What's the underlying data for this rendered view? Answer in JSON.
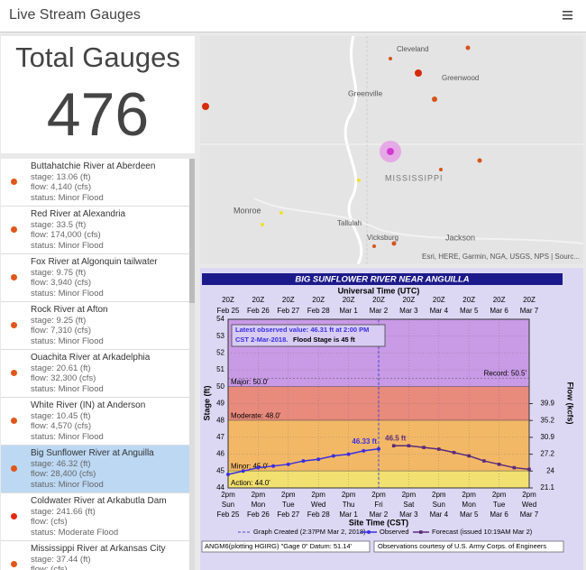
{
  "header": {
    "title": "Live Stream Gauges"
  },
  "summary": {
    "label": "Total Gauges",
    "value": 476
  },
  "gauges": [
    {
      "name": "Buttahatchie River at Aberdeen",
      "stage": "stage: 13.06 (ft)",
      "flow": "flow: 4,140 (cfs)",
      "status": "status: Minor Flood",
      "color": "#e0561b"
    },
    {
      "name": "Red River at Alexandria",
      "stage": "stage: 33.5 (ft)",
      "flow": "flow: 174,000 (cfs)",
      "status": "status: Minor Flood",
      "color": "#e0561b"
    },
    {
      "name": "Fox River at Algonquin tailwater",
      "stage": "stage: 9.75 (ft)",
      "flow": "flow: 3,940 (cfs)",
      "status": "status: Minor Flood",
      "color": "#e0561b"
    },
    {
      "name": "Rock River at Afton",
      "stage": "stage: 9.25 (ft)",
      "flow": "flow: 7,310 (cfs)",
      "status": "status: Minor Flood",
      "color": "#e0561b"
    },
    {
      "name": "Ouachita River at Arkadelphia",
      "stage": "stage: 20.61 (ft)",
      "flow": "flow: 32,300 (cfs)",
      "status": "status: Minor Flood",
      "color": "#e0561b"
    },
    {
      "name": "White River (IN) at Anderson",
      "stage": "stage: 10.45 (ft)",
      "flow": "flow: 4,570 (cfs)",
      "status": "status: Minor Flood",
      "color": "#e0561b"
    },
    {
      "name": "Big Sunflower River at Anguilla",
      "stage": "stage: 46.32 (ft)",
      "flow": "flow: 28,400 (cfs)",
      "status": "status: Minor Flood",
      "color": "#e0561b",
      "selected": true
    },
    {
      "name": "Coldwater River at Arkabutla Dam",
      "stage": "stage: 241.66 (ft)",
      "flow": "flow: (cfs)",
      "status": "status: Moderate Flood",
      "color": "#e02a10"
    },
    {
      "name": "Mississippi River at Arkansas City",
      "stage": "stage: 37.44 (ft)",
      "flow": "flow: (cfs)",
      "status": "status: Minor Flood",
      "color": "#e0561b"
    }
  ],
  "map": {
    "labels": [
      "Cleveland",
      "Greenwood",
      "Greenville",
      "MISSISSIPPI",
      "Monroe",
      "Tallulah",
      "Vicksburg",
      "Jackson"
    ],
    "attribution": "Esri, HERE, Garmin, NGA, USGS, NPS | Sourc..."
  },
  "chart_data": {
    "type": "line",
    "title": "BIG SUNFLOWER RIVER NEAR ANGUILLA",
    "top_axis_label": "Universal Time (UTC)",
    "x_label": "Site Time (CST)",
    "y_label": "Stage (ft)",
    "y2_label": "Flow (kcfs)",
    "xlim": [
      "2018-02-25T14:00",
      "2018-03-07T14:00"
    ],
    "xticks": [
      {
        "value": "2018-02-25T14:00",
        "label": [
          "2pm",
          "Sun",
          "Feb 25"
        ],
        "utc_label": [
          "20Z",
          "Feb 25"
        ]
      },
      {
        "value": "2018-02-26T14:00",
        "label": [
          "2pm",
          "Mon",
          "Feb 26"
        ],
        "utc_label": [
          "20Z",
          "Feb 26"
        ]
      },
      {
        "value": "2018-02-27T14:00",
        "label": [
          "2pm",
          "Tue",
          "Feb 27"
        ],
        "utc_label": [
          "20Z",
          "Feb 27"
        ]
      },
      {
        "value": "2018-02-28T14:00",
        "label": [
          "2pm",
          "Wed",
          "Feb 28"
        ],
        "utc_label": [
          "20Z",
          "Feb 28"
        ]
      },
      {
        "value": "2018-03-01T14:00",
        "label": [
          "2pm",
          "Thu",
          "Mar 1"
        ],
        "utc_label": [
          "20Z",
          "Mar 1"
        ]
      },
      {
        "value": "2018-03-02T14:00",
        "label": [
          "2pm",
          "Fri",
          "Mar 2"
        ],
        "utc_label": [
          "20Z",
          "Mar 2"
        ]
      },
      {
        "value": "2018-03-03T14:00",
        "label": [
          "2pm",
          "Sat",
          "Mar 3"
        ],
        "utc_label": [
          "20Z",
          "Mar 3"
        ]
      },
      {
        "value": "2018-03-04T14:00",
        "label": [
          "2pm",
          "Sun",
          "Mar 4"
        ],
        "utc_label": [
          "20Z",
          "Mar 4"
        ]
      },
      {
        "value": "2018-03-05T14:00",
        "label": [
          "2pm",
          "Mon",
          "Mar 5"
        ],
        "utc_label": [
          "20Z",
          "Mar 5"
        ]
      },
      {
        "value": "2018-03-06T14:00",
        "label": [
          "2pm",
          "Tue",
          "Mar 6"
        ],
        "utc_label": [
          "20Z",
          "Mar 6"
        ]
      },
      {
        "value": "2018-03-07T14:00",
        "label": [
          "2pm",
          "Wed",
          "Mar 7"
        ],
        "utc_label": [
          "20Z",
          "Mar 7"
        ]
      }
    ],
    "ylim": [
      44,
      54
    ],
    "yticks": [
      44,
      45,
      46,
      47,
      48,
      49,
      50,
      51,
      52,
      53,
      54
    ],
    "y2ticks": [
      21.1,
      24.0,
      27.2,
      30.9,
      35.2,
      39.9
    ],
    "grid": true,
    "flood_categories": [
      {
        "label": "Major: 50.0'",
        "value": 50,
        "color": "#c99ae6"
      },
      {
        "label": "Moderate: 48.0'",
        "value": 48,
        "color": "#e88a7c"
      },
      {
        "label": "Minor: 45.0'",
        "value": 45,
        "color": "#f3b866"
      },
      {
        "label": "Action: 44.0'",
        "value": 44,
        "color": "#f2e070"
      }
    ],
    "record": {
      "label": "Record: 50.5'",
      "value": 50.5
    },
    "series": [
      {
        "name": "Observed",
        "color": "#3a2fe0",
        "marker": "circle",
        "x": [
          "2018-02-25T14:00",
          "2018-02-26T02:00",
          "2018-02-26T14:00",
          "2018-02-27T02:00",
          "2018-02-27T14:00",
          "2018-02-28T02:00",
          "2018-02-28T14:00",
          "2018-03-01T02:00",
          "2018-03-01T14:00",
          "2018-03-02T02:00",
          "2018-03-02T14:00"
        ],
        "values": [
          44.8,
          45.0,
          45.2,
          45.3,
          45.4,
          45.6,
          45.7,
          45.9,
          46.0,
          46.2,
          46.31
        ]
      },
      {
        "name": "Forecast (issued 10:19AM Mar 2)",
        "color": "#5a2a7a",
        "marker": "square",
        "x": [
          "2018-03-03T02:00",
          "2018-03-03T14:00",
          "2018-03-04T02:00",
          "2018-03-04T14:00",
          "2018-03-05T02:00",
          "2018-03-05T14:00",
          "2018-03-06T02:00",
          "2018-03-06T14:00",
          "2018-03-07T02:00",
          "2018-03-07T14:00"
        ],
        "values": [
          46.5,
          46.5,
          46.4,
          46.3,
          46.1,
          45.9,
          45.6,
          45.4,
          45.2,
          45.1
        ]
      }
    ],
    "annotations": {
      "observed_peak": "46.33 ft",
      "forecast_peak": "46.5 ft",
      "info": [
        "Latest observed value: 46.31 ft at 2:00 PM",
        "CST 2-Mar-2018.",
        "Flood Stage is 45 ft"
      ]
    },
    "legend": {
      "graph_created": "Graph Created (2:37PM Mar 2, 2018)"
    },
    "footer": [
      "ANGM6(plotting HGIRG) \"Gage 0\" Datum: 51.14'",
      "Observations courtesy of U.S. Army Corps. of Engineers"
    ]
  }
}
